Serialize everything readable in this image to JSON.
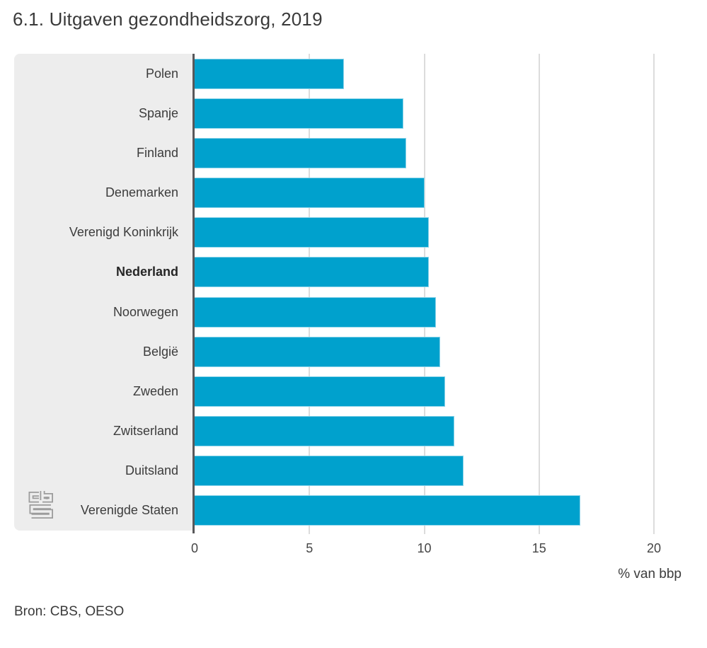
{
  "title": "6.1. Uitgaven gezondheidszorg, 2019",
  "source": "Bron: CBS, OESO",
  "chart_data": {
    "type": "bar",
    "orientation": "horizontal",
    "title": "6.1. Uitgaven gezondheidszorg, 2019",
    "xlabel": "% van bbp",
    "categories": [
      "Polen",
      "Spanje",
      "Finland",
      "Denemarken",
      "Verenigd Koninkrijk",
      "Nederland",
      "Noorwegen",
      "België",
      "Zweden",
      "Zwitserland",
      "Duitsland",
      "Verenigde Staten"
    ],
    "values": [
      6.5,
      9.1,
      9.2,
      10.0,
      10.2,
      10.2,
      10.5,
      10.7,
      10.9,
      11.3,
      11.7,
      16.8
    ],
    "bold_category": "Nederland",
    "xticks": [
      "0",
      "5",
      "10",
      "15",
      "20"
    ],
    "xtick_values": [
      0,
      5,
      10,
      15,
      20
    ],
    "xlim": [
      0,
      21.2
    ],
    "grid": true,
    "legend": false,
    "source": "Bron: CBS, OESO",
    "logo": "cbs-logo",
    "colors": {
      "bar": "#00a1cd",
      "axis": "#58585a",
      "grid": "#dcdcdc",
      "panel": "#ededed",
      "text": "#3c3c3c",
      "logo": "#9c9c9c"
    }
  }
}
